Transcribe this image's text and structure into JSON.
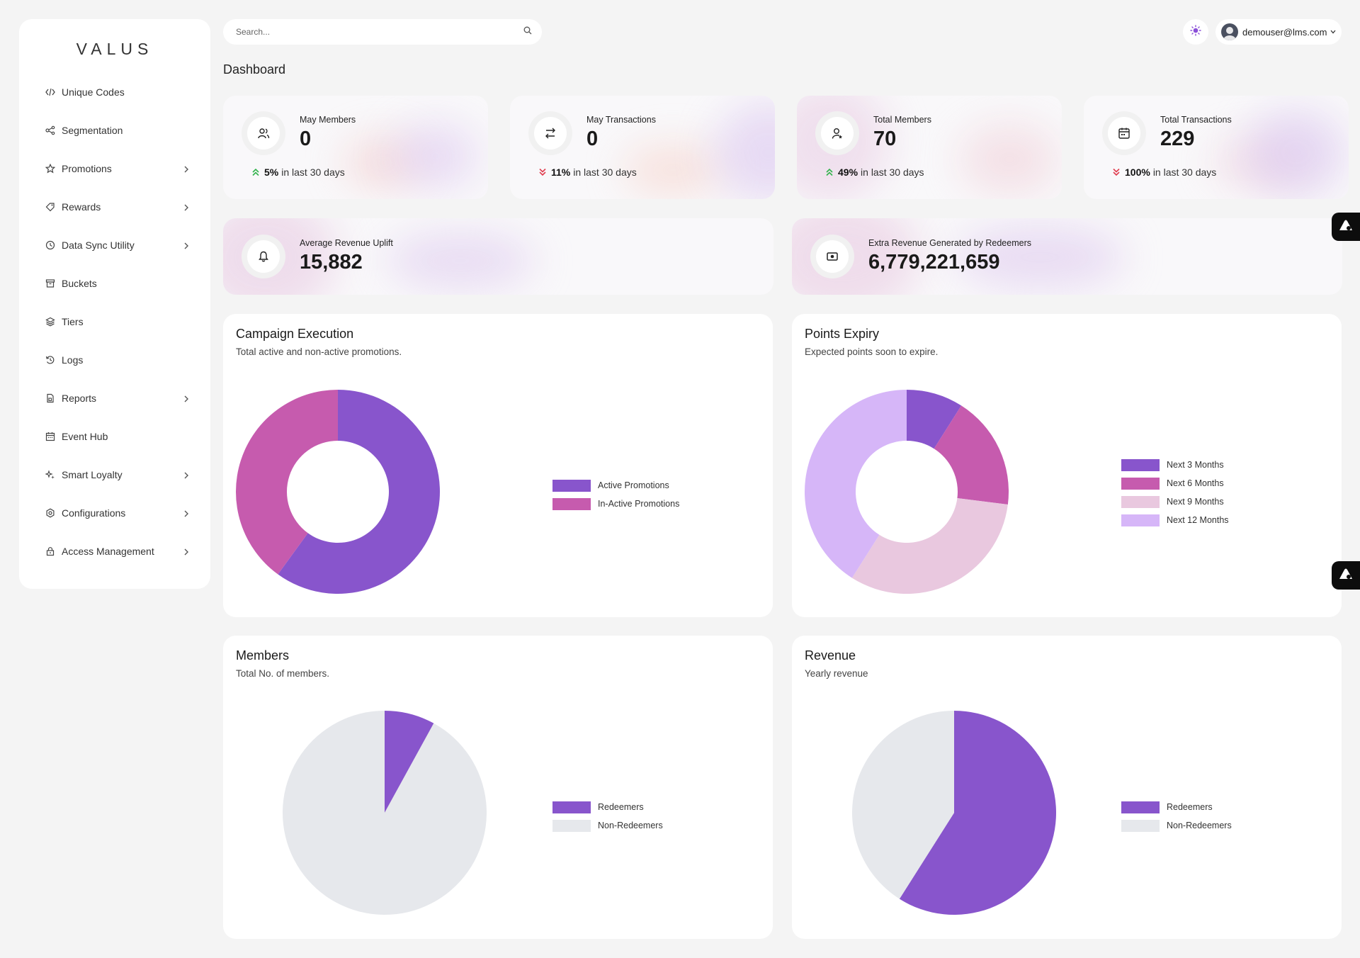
{
  "brand": "VALUS",
  "sidebar": {
    "items": [
      {
        "label": "Unique Codes",
        "icon": "code-icon",
        "chevron": false
      },
      {
        "label": "Segmentation",
        "icon": "segment-icon",
        "chevron": false
      },
      {
        "label": "Promotions",
        "icon": "star-icon",
        "chevron": true
      },
      {
        "label": "Rewards",
        "icon": "tag-icon",
        "chevron": true
      },
      {
        "label": "Data Sync Utility",
        "icon": "clock-icon",
        "chevron": true
      },
      {
        "label": "Buckets",
        "icon": "box-icon",
        "chevron": false
      },
      {
        "label": "Tiers",
        "icon": "layers-icon",
        "chevron": false
      },
      {
        "label": "Logs",
        "icon": "history-icon",
        "chevron": false
      },
      {
        "label": "Reports",
        "icon": "file-icon",
        "chevron": true
      },
      {
        "label": "Event Hub",
        "icon": "calendar-icon",
        "chevron": false
      },
      {
        "label": "Smart Loyalty",
        "icon": "sparkle-icon",
        "chevron": true
      },
      {
        "label": "Configurations",
        "icon": "gear-icon",
        "chevron": true
      },
      {
        "label": "Access Management",
        "icon": "lock-icon",
        "chevron": true
      }
    ]
  },
  "header": {
    "search_placeholder": "Search...",
    "user_email": "demouser@lms.com"
  },
  "page_title": "Dashboard",
  "stats": [
    {
      "label": "May Members",
      "value": "0",
      "trend_dir": "up",
      "trend_pct": "5%",
      "trend_text": "in last 30 days"
    },
    {
      "label": "May Transactions",
      "value": "0",
      "trend_dir": "down",
      "trend_pct": "11%",
      "trend_text": "in last 30 days"
    },
    {
      "label": "Total Members",
      "value": "70",
      "trend_dir": "up",
      "trend_pct": "49%",
      "trend_text": "in last 30 days"
    },
    {
      "label": "Total Transactions",
      "value": "229",
      "trend_dir": "down",
      "trend_pct": "100%",
      "trend_text": "in last 30 days"
    }
  ],
  "wide_stats": [
    {
      "label": "Average Revenue Uplift",
      "value": "15,882"
    },
    {
      "label": "Extra Revenue Generated by Redeemers",
      "value": "6,779,221,659"
    }
  ],
  "colors": {
    "purple": "#8855cc",
    "magenta": "#c65bae",
    "light_pink": "#e9c8df",
    "lavender": "#d6b6f8",
    "grey": "#e6e8ec",
    "trend_up": "#32b34c",
    "trend_down": "#e03b4d"
  },
  "chart_data": [
    {
      "type": "donut",
      "title": "Campaign Execution",
      "subtitle": "Total active and non-active promotions.",
      "series": [
        {
          "name": "Active Promotions",
          "value": 60,
          "color": "#8855cc"
        },
        {
          "name": "In-Active Promotions",
          "value": 40,
          "color": "#c65bae"
        }
      ]
    },
    {
      "type": "donut",
      "title": "Points Expiry",
      "subtitle": "Expected points soon to expire.",
      "series": [
        {
          "name": "Next 3 Months",
          "value": 9,
          "color": "#8855cc"
        },
        {
          "name": "Next 6 Months",
          "value": 18,
          "color": "#c65bae"
        },
        {
          "name": "Next 9 Months",
          "value": 32,
          "color": "#e9c8df"
        },
        {
          "name": "Next 12 Months",
          "value": 41,
          "color": "#d6b6f8"
        }
      ]
    },
    {
      "type": "pie",
      "title": "Members",
      "subtitle": "Total No. of members.",
      "series": [
        {
          "name": "Redeemers",
          "value": 8,
          "color": "#8855cc"
        },
        {
          "name": "Non-Redeemers",
          "value": 92,
          "color": "#e6e8ec"
        }
      ]
    },
    {
      "type": "pie",
      "title": "Revenue",
      "subtitle": "Yearly revenue",
      "series": [
        {
          "name": "Redeemers",
          "value": 59,
          "color": "#8855cc"
        },
        {
          "name": "Non-Redeemers",
          "value": 41,
          "color": "#e6e8ec"
        }
      ]
    }
  ]
}
